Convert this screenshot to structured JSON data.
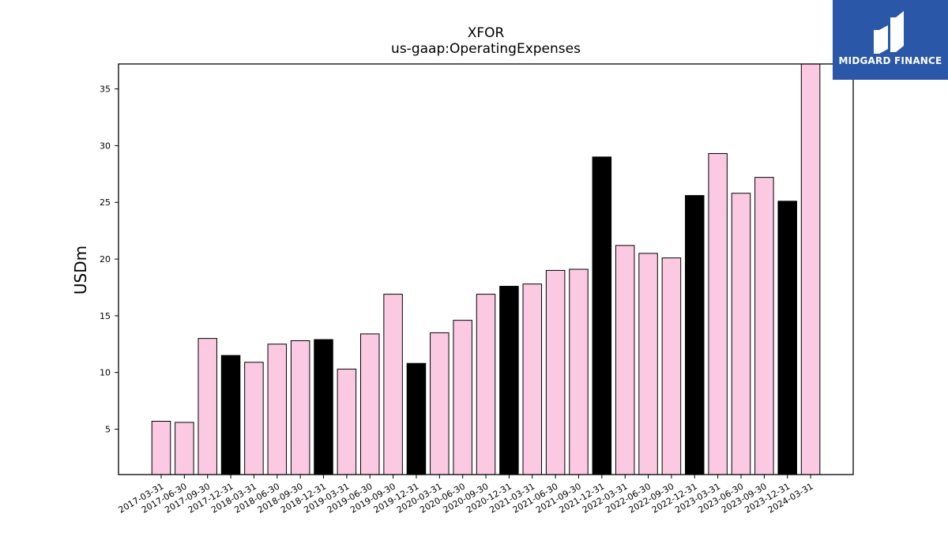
{
  "logo": {
    "text": "MIDGARD FINANCE"
  },
  "colors": {
    "regular": "#fcc9e3",
    "year_end": "#000000",
    "logo_bg": "#2b57a8"
  },
  "chart_data": {
    "type": "bar",
    "title": "XFOR",
    "subtitle": "us-gaap:OperatingExpenses",
    "xlabel": "",
    "ylabel": "USDm",
    "ylim": [
      1,
      37.2
    ],
    "yticks": [
      5,
      10,
      15,
      20,
      25,
      30,
      35
    ],
    "categories": [
      "2017-03-31",
      "2017-06-30",
      "2017-09-30",
      "2017-12-31",
      "2018-03-31",
      "2018-06-30",
      "2018-09-30",
      "2018-12-31",
      "2019-03-31",
      "2019-06-30",
      "2019-09-30",
      "2019-12-31",
      "2020-03-31",
      "2020-06-30",
      "2020-09-30",
      "2020-12-31",
      "2021-03-31",
      "2021-06-30",
      "2021-09-30",
      "2021-12-31",
      "2022-03-31",
      "2022-06-30",
      "2022-09-30",
      "2022-12-31",
      "2023-03-31",
      "2023-06-30",
      "2023-09-30",
      "2023-12-31",
      "2024-03-31"
    ],
    "values": [
      5.7,
      5.6,
      13.0,
      11.5,
      10.9,
      12.5,
      12.8,
      12.9,
      10.3,
      13.4,
      16.9,
      10.8,
      13.5,
      14.6,
      16.9,
      17.6,
      17.8,
      19.0,
      19.1,
      29.0,
      21.2,
      20.5,
      20.1,
      25.6,
      29.3,
      25.8,
      27.2,
      25.1,
      37.2
    ],
    "year_end_highlight": true,
    "grid": false,
    "legend": "none"
  }
}
